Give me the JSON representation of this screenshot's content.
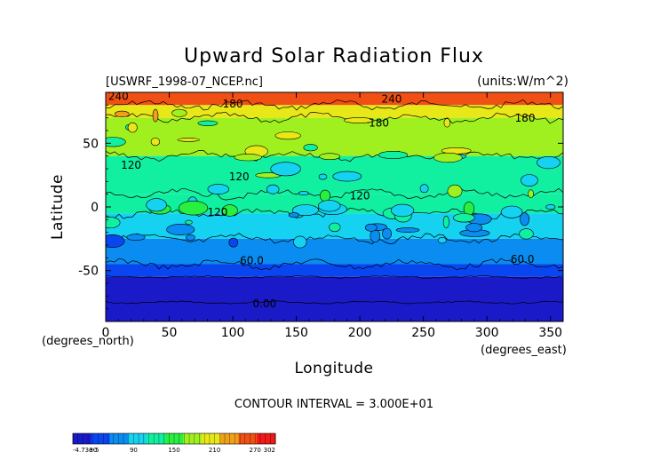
{
  "chart_data": {
    "type": "heatmap",
    "title": "Upward Solar Radiation Flux",
    "file_label": "[USWRF_1998-07_NCEP.nc]",
    "units_label": "(units:W/m^2)",
    "xlabel": "Longitude",
    "ylabel": "Latitude",
    "x_unit_label": "(degrees_east)",
    "y_unit_label": "(degrees_north)",
    "xlim": [
      0,
      360
    ],
    "ylim": [
      -90,
      90
    ],
    "x_ticks": [
      0,
      50,
      100,
      150,
      200,
      250,
      300,
      350
    ],
    "y_ticks": [
      -50,
      0,
      50
    ],
    "contour_interval_text": "CONTOUR INTERVAL = 3.000E+01",
    "color_scale": {
      "min": -4.73e-05,
      "max": 302,
      "tick_labels": [
        "-4.73e-5",
        "30",
        "90",
        "150",
        "210",
        "270",
        "302"
      ],
      "colors": [
        "#1a1ac8",
        "#0a46f0",
        "#0a8cf0",
        "#14d2f0",
        "#10f0a0",
        "#28f040",
        "#a0f020",
        "#e8e818",
        "#f0a018",
        "#f05014",
        "#f01818"
      ]
    },
    "bands": [
      {
        "lat": [
          80,
          90
        ],
        "value": 255
      },
      {
        "lat": [
          70,
          80
        ],
        "value": 200
      },
      {
        "lat": [
          40,
          70
        ],
        "value": 165
      },
      {
        "lat": [
          10,
          40
        ],
        "value": 135
      },
      {
        "lat": [
          -5,
          10
        ],
        "value": 120
      },
      {
        "lat": [
          -25,
          -5
        ],
        "value": 100
      },
      {
        "lat": [
          -45,
          -25
        ],
        "value": 75
      },
      {
        "lat": [
          -55,
          -45
        ],
        "value": 45
      },
      {
        "lat": [
          -75,
          -55
        ],
        "value": 20
      },
      {
        "lat": [
          -90,
          -75
        ],
        "value": 0
      }
    ],
    "contour_labels": [
      {
        "text": "240",
        "lon": 10,
        "lat": 84
      },
      {
        "text": "180",
        "lon": 100,
        "lat": 78
      },
      {
        "text": "240",
        "lon": 225,
        "lat": 82
      },
      {
        "text": "180",
        "lon": 215,
        "lat": 63
      },
      {
        "text": "180",
        "lon": 330,
        "lat": 67
      },
      {
        "text": "120",
        "lon": 20,
        "lat": 30
      },
      {
        "text": "120",
        "lon": 105,
        "lat": 21
      },
      {
        "text": "120",
        "lon": 200,
        "lat": 6
      },
      {
        "text": "120",
        "lon": 88,
        "lat": -7
      },
      {
        "text": "60.0",
        "lon": 115,
        "lat": -45
      },
      {
        "text": "60.0",
        "lon": 328,
        "lat": -44
      },
      {
        "text": "0.00",
        "lon": 125,
        "lat": -79
      }
    ]
  }
}
